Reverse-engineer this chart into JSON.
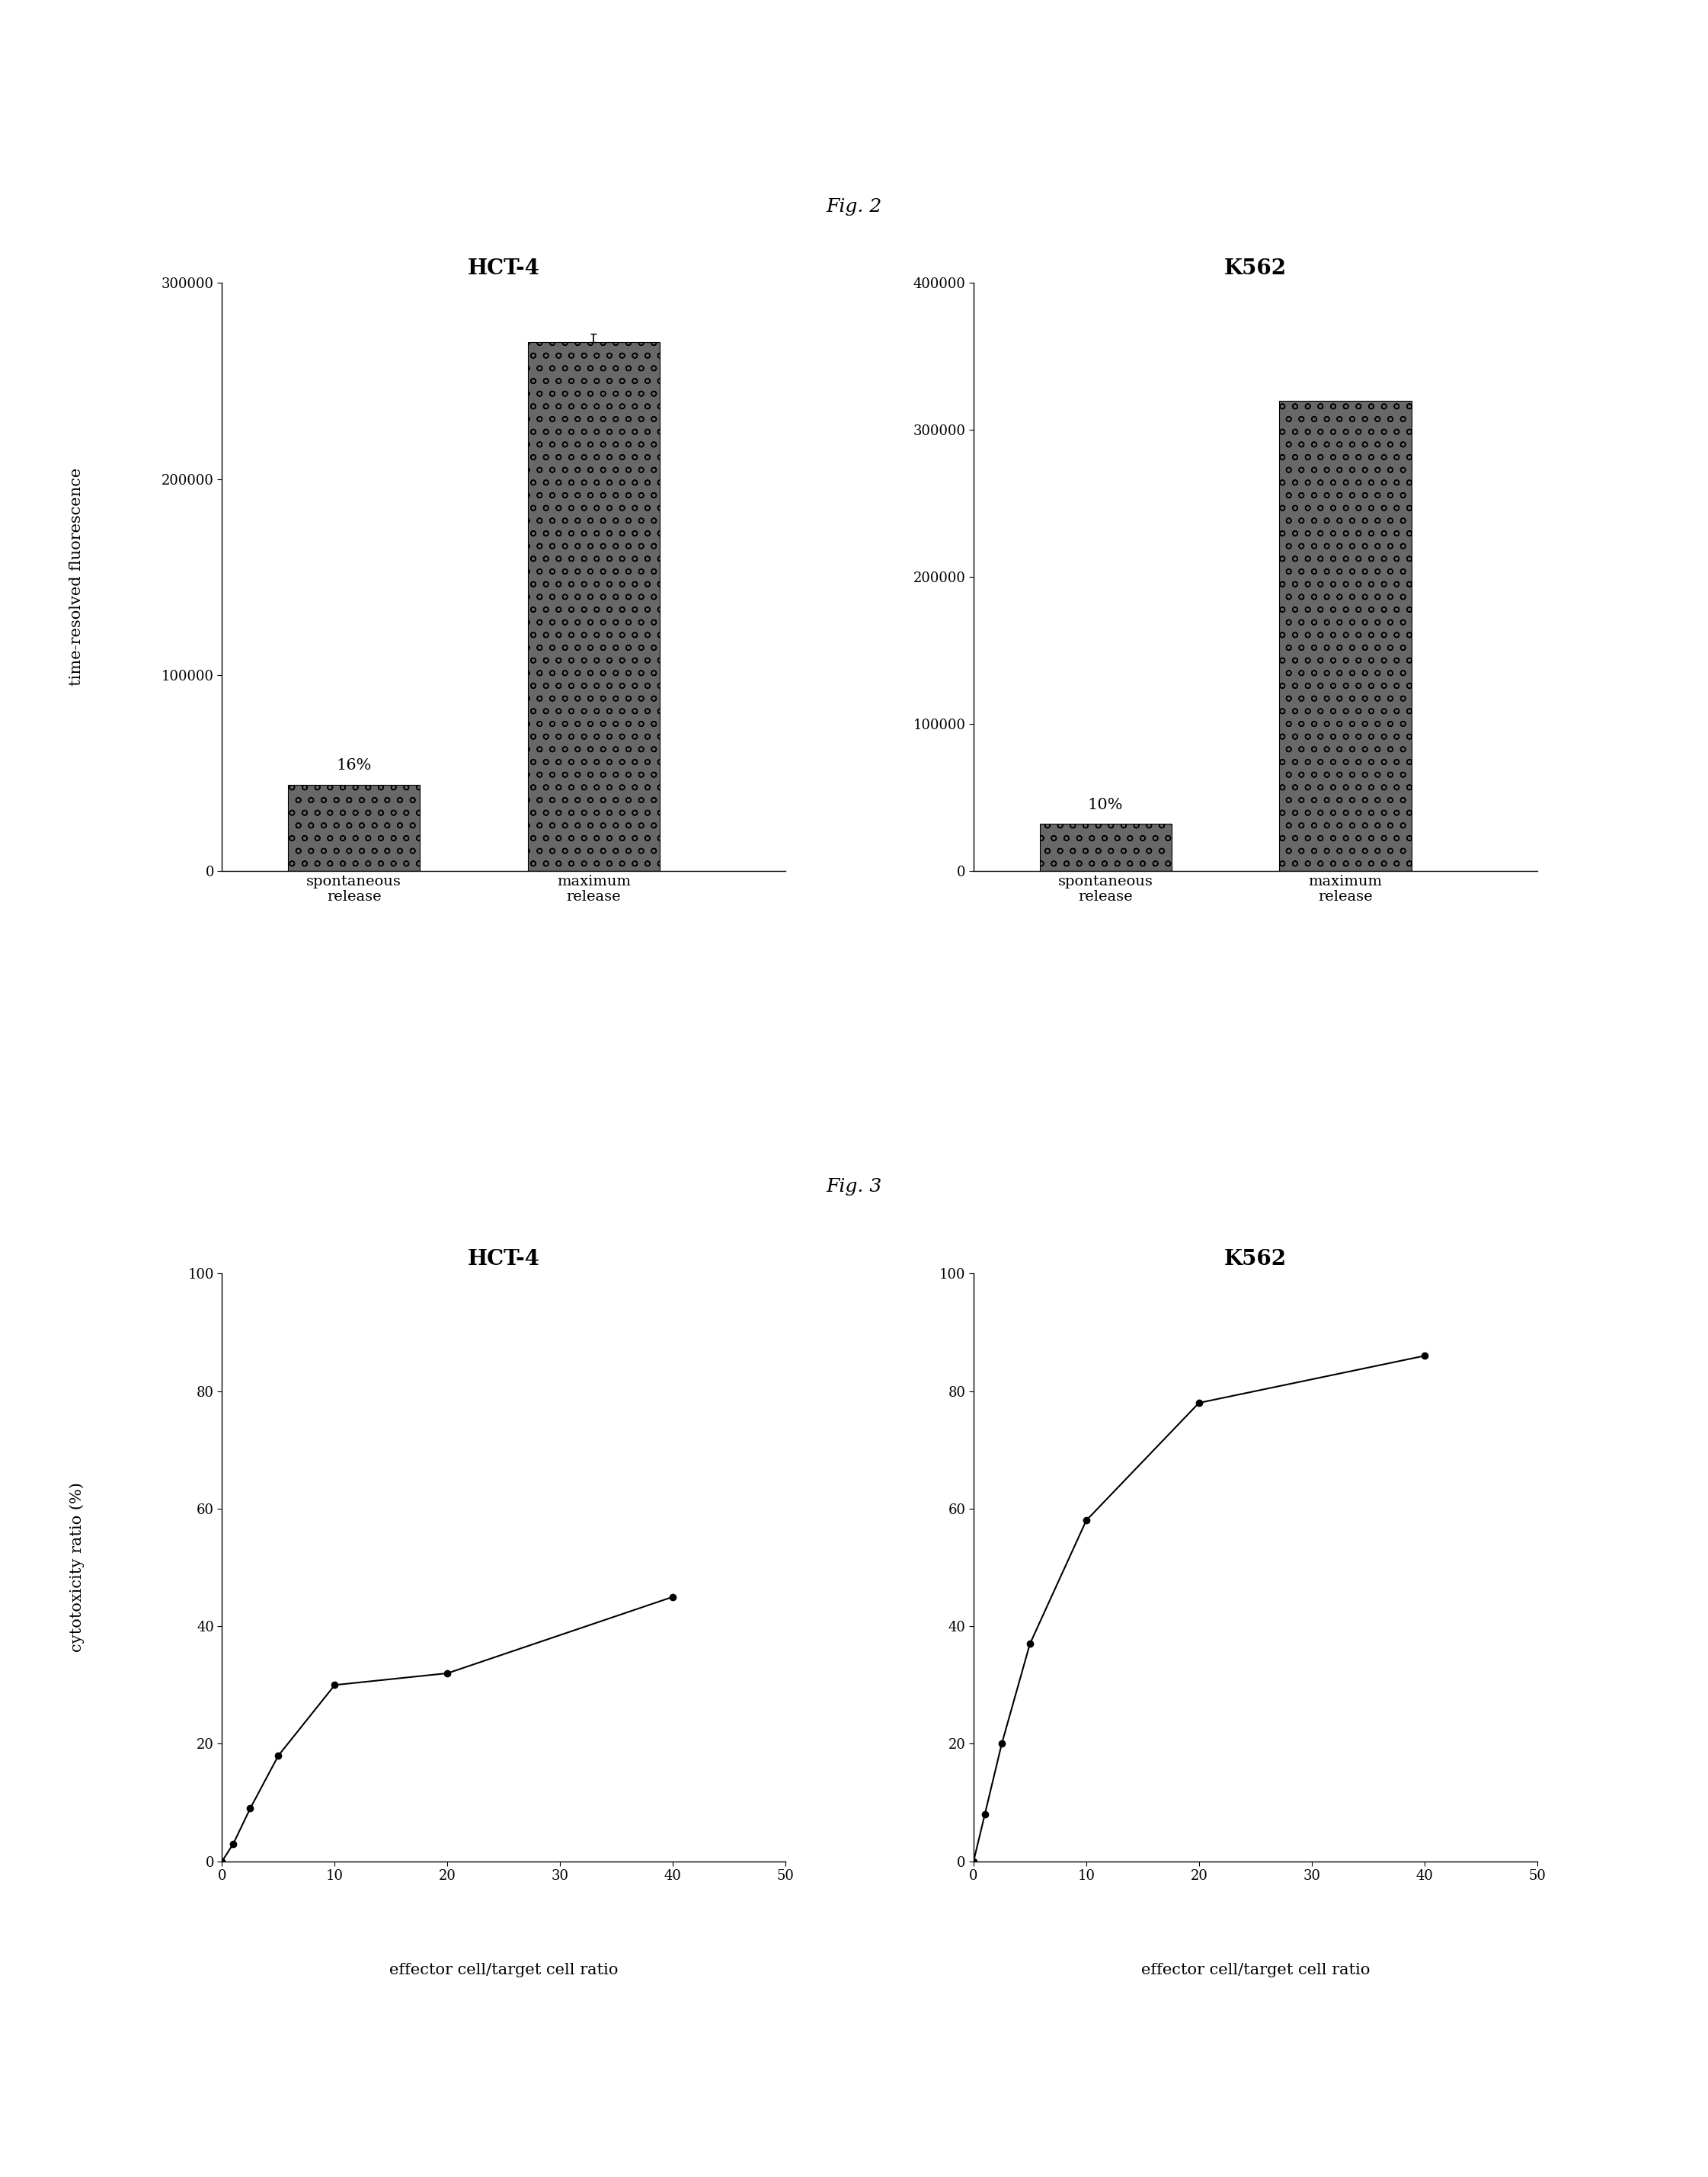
{
  "fig2_title": "Fig. 2",
  "fig3_title": "Fig. 3",
  "bar_left_title": "HCT-4",
  "bar_right_title": "K562",
  "line_left_title": "HCT-4",
  "line_right_title": "K562",
  "hct4_bar_values": [
    44000,
    270000
  ],
  "hct4_bar_ylim": [
    0,
    300000
  ],
  "hct4_bar_yticks": [
    0,
    100000,
    200000,
    300000
  ],
  "hct4_bar_pct": "16%",
  "k562_bar_values": [
    32000,
    320000
  ],
  "k562_bar_ylim": [
    0,
    400000
  ],
  "k562_bar_yticks": [
    0,
    100000,
    200000,
    300000,
    400000
  ],
  "k562_bar_pct": "10%",
  "bar_categories": [
    "spontaneous\nrelease",
    "maximum\nrelease"
  ],
  "bar_color": "#686868",
  "bar_hatch": "o",
  "hct4_line_x": [
    0,
    1,
    2.5,
    5,
    10,
    20,
    40
  ],
  "hct4_line_y": [
    0,
    3,
    9,
    18,
    30,
    32,
    45
  ],
  "k562_line_x": [
    0,
    1,
    2.5,
    5,
    10,
    20,
    40
  ],
  "k562_line_y": [
    0,
    8,
    20,
    37,
    58,
    78,
    86
  ],
  "line_xlim": [
    0,
    50
  ],
  "line_ylim": [
    0,
    100
  ],
  "line_xticks": [
    0,
    10,
    20,
    30,
    40,
    50
  ],
  "line_yticks": [
    0,
    20,
    40,
    60,
    80,
    100
  ],
  "ylabel_bar": "time-resolved fluorescence",
  "ylabel_line": "cytotoxicity ratio (%)",
  "xlabel_line": "effector cell/target cell ratio",
  "background_color": "#ffffff",
  "text_color": "#000000",
  "title_fontsize": 20,
  "label_fontsize": 15,
  "tick_fontsize": 13,
  "fig_label_fontsize": 18,
  "pct_fontsize": 15
}
